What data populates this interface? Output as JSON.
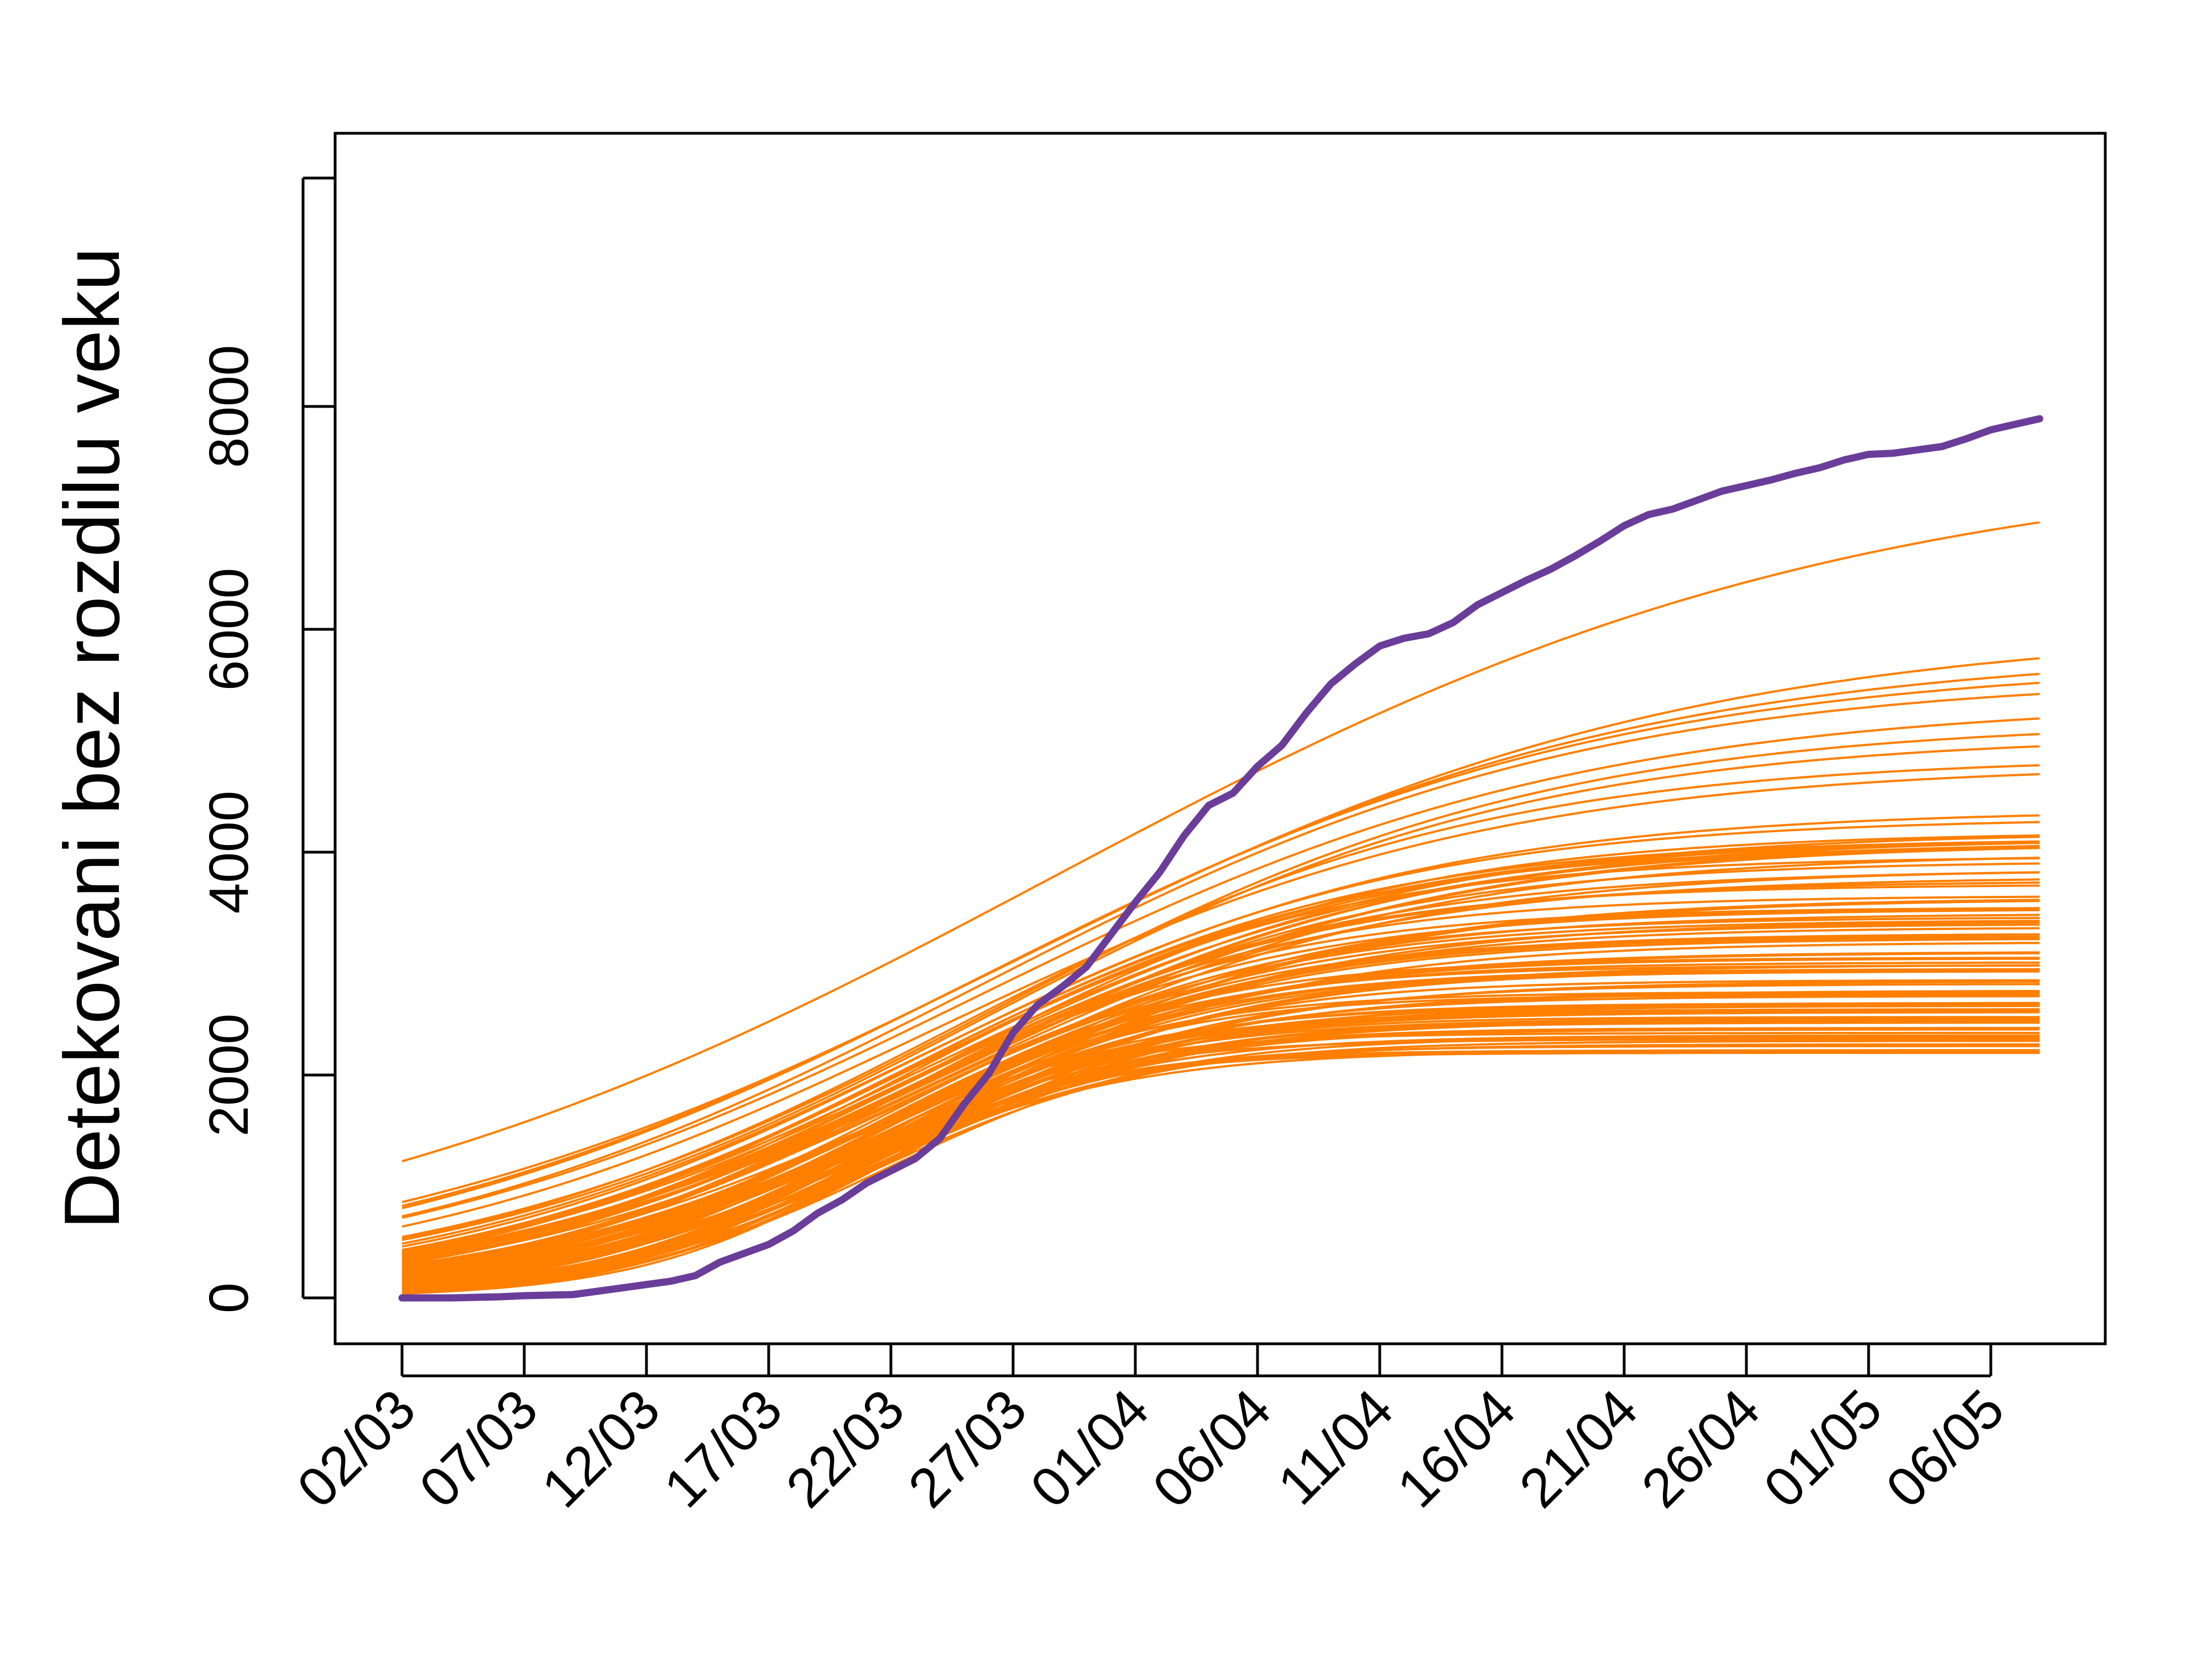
{
  "chart_data": {
    "type": "line",
    "title": "",
    "xlabel": "",
    "ylabel": "Detekovani bez rozdilu veku",
    "grid": false,
    "legend": "none",
    "x_tick_labels": [
      "02/03",
      "07/03",
      "12/03",
      "17/03",
      "22/03",
      "27/03",
      "01/04",
      "06/04",
      "11/04",
      "16/04",
      "21/04",
      "26/04",
      "01/05",
      "06/05"
    ],
    "x_tick_days": [
      0,
      5,
      10,
      15,
      20,
      25,
      30,
      35,
      40,
      45,
      50,
      55,
      60,
      65
    ],
    "x_range_days": [
      0,
      67
    ],
    "y_ticks": [
      0,
      2000,
      4000,
      6000,
      8000
    ],
    "ylim": [
      -400,
      10200
    ],
    "colors": {
      "observed": "#6a3d9a",
      "simulations": "#ff7f00"
    },
    "series": [
      {
        "role": "observed",
        "x_days": [
          0,
          1,
          2,
          3,
          4,
          5,
          6,
          7,
          8,
          9,
          10,
          11,
          12,
          13,
          14,
          15,
          16,
          17,
          18,
          19,
          20,
          21,
          22,
          23,
          24,
          25,
          26,
          27,
          28,
          29,
          30,
          31,
          32,
          33,
          34,
          35,
          36,
          37,
          38,
          39,
          40,
          41,
          42,
          43,
          44,
          45,
          46,
          47,
          48,
          49,
          50,
          51,
          52,
          53,
          54,
          55,
          56,
          57,
          58,
          59,
          60,
          61,
          62,
          63,
          64,
          65,
          66,
          67
        ],
        "values": [
          0,
          0,
          0,
          5,
          10,
          20,
          25,
          30,
          60,
          90,
          120,
          150,
          200,
          320,
          400,
          480,
          600,
          760,
          880,
          1030,
          1140,
          1250,
          1430,
          1740,
          2010,
          2380,
          2630,
          2790,
          2970,
          3260,
          3550,
          3820,
          4150,
          4420,
          4530,
          4770,
          4960,
          5250,
          5510,
          5690,
          5850,
          5920,
          5960,
          6060,
          6220,
          6330,
          6440,
          6540,
          6660,
          6790,
          6930,
          7030,
          7080,
          7160,
          7240,
          7290,
          7340,
          7400,
          7450,
          7520,
          7570,
          7580,
          7610,
          7640,
          7710,
          7790,
          7840,
          7890
        ]
      }
    ],
    "simulation_ensemble": {
      "count": 100,
      "x_days": [
        0,
        67
      ],
      "final_values_min": 2200,
      "final_values_max": 6960,
      "final_values_highlighted": [
        6960,
        5740,
        5600,
        5520,
        5420,
        5200,
        5060,
        4950,
        4780,
        4700,
        4330,
        4270,
        4150,
        4050,
        3950,
        3820,
        3700,
        3600,
        3480,
        3350,
        3220,
        3100,
        2950,
        2850,
        2720,
        2620,
        2520,
        2420,
        2340,
        2260,
        2200
      ]
    }
  }
}
